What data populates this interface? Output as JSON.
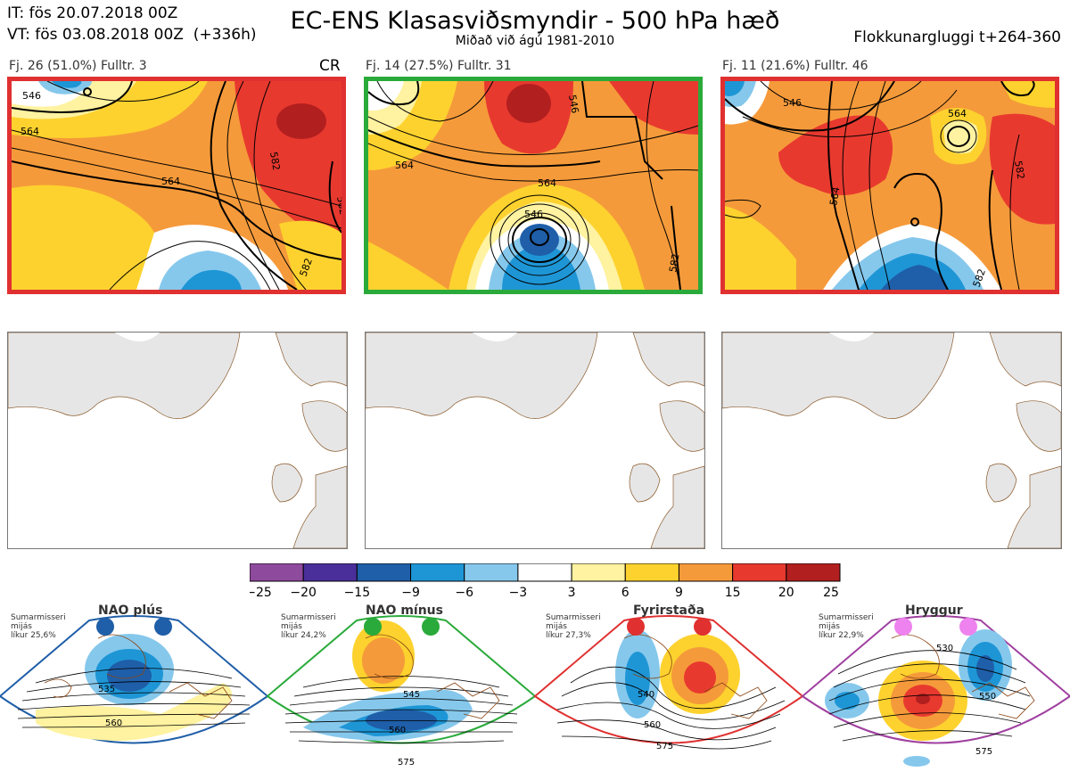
{
  "header": {
    "it_line": "IT: fös 20.07.2018 00Z",
    "vt_line": "VT: fös 03.08.2018 00Z  (+336h)",
    "title": "EC-ENS Klasasviðsmyndir - 500 hPa hæð",
    "subtitle": "Miðað við ágú 1981-2010",
    "window": "Flokkunargluggi t+264-360"
  },
  "clusters": [
    {
      "caption": "Fj. 26 (51.0%)   Fulltr. 3",
      "tag": "CR",
      "border_color": "#e03030",
      "contour_labels": [
        "546",
        "564",
        "564",
        "582",
        "582",
        "582"
      ]
    },
    {
      "caption": "Fj. 14 (27.5%)   Fulltr. 31",
      "tag": "",
      "border_color": "#2aaa3a",
      "contour_labels": [
        "546",
        "564",
        "546",
        "564",
        "582"
      ]
    },
    {
      "caption": "Fj. 11 (21.6%)   Fulltr. 46",
      "tag": "",
      "border_color": "#e03030",
      "contour_labels": [
        "546",
        "564",
        "564",
        "582",
        "582"
      ]
    }
  ],
  "colorbar": {
    "ticks": [
      "−25",
      "−20",
      "−15",
      "−9",
      "−6",
      "−3",
      "3",
      "6",
      "9",
      "15",
      "20",
      "25"
    ],
    "colors": [
      "#8e4a9c",
      "#4a2f9a",
      "#1f5ea8",
      "#1e96d6",
      "#86c8ec",
      "#ffffff",
      "#fff2a0",
      "#fdd22e",
      "#f59a3a",
      "#e8392f",
      "#b21f1f"
    ]
  },
  "regimes": [
    {
      "name": "NAO plús",
      "climate": "Sumarmisseri\nmijás\nlíkur 25,6%",
      "color": "#1f5ea8",
      "labels": [
        "535",
        "560"
      ]
    },
    {
      "name": "NAO mínus",
      "climate": "Sumarmisseri\nmijás\nlíkur 24,2%",
      "color": "#2aaa3a",
      "labels": [
        "545",
        "560",
        "575"
      ]
    },
    {
      "name": "Fyrirstaða",
      "climate": "Sumarmisseri\nmijás\nlíkur 27,3%",
      "color": "#e03030",
      "labels": [
        "540",
        "560",
        "575"
      ]
    },
    {
      "name": "Hryggur",
      "climate": "Sumarmisseri\nmijás\nlíkur 22,9%",
      "color": "#a040a0",
      "labels": [
        "530",
        "550",
        "575"
      ]
    }
  ]
}
